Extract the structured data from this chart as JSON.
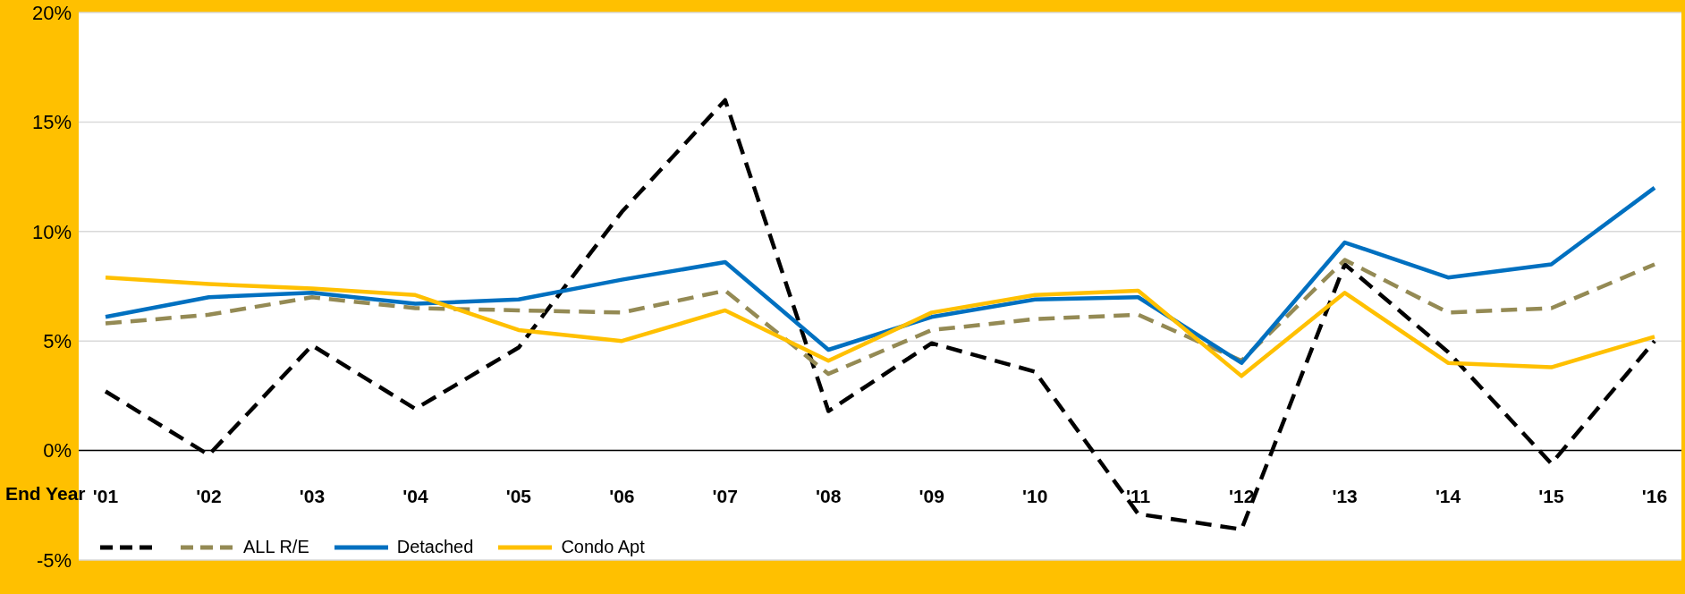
{
  "chart_data": {
    "type": "line",
    "xlabel": "End Year",
    "categories": [
      "'01",
      "'02",
      "'03",
      "'04",
      "'05",
      "'06",
      "'07",
      "'08",
      "'09",
      "'10",
      "'11",
      "'12",
      "'13",
      "'14",
      "'15",
      "'16"
    ],
    "series": [
      {
        "color": "#000000",
        "line_style": "dashed",
        "values": [
          2.7,
          -0.2,
          4.8,
          1.9,
          4.7,
          10.9,
          16.0,
          1.8,
          4.9,
          3.6,
          -2.9,
          -3.6,
          8.5,
          4.5,
          -0.6,
          5.0
        ]
      },
      {
        "name": "ALL R/E",
        "color": "#948a54",
        "line_style": "dashed",
        "values": [
          5.8,
          6.2,
          7.0,
          6.5,
          6.4,
          6.3,
          7.3,
          3.5,
          5.5,
          6.0,
          6.2,
          4.1,
          8.7,
          6.3,
          6.5,
          8.5
        ]
      },
      {
        "name": "Detached",
        "color": "#0070c0",
        "line_style": "solid",
        "values": [
          6.1,
          7.0,
          7.2,
          6.7,
          6.9,
          7.8,
          8.6,
          4.6,
          6.1,
          6.9,
          7.0,
          4.0,
          9.5,
          7.9,
          8.5,
          12.0
        ]
      },
      {
        "name": "Condo Apt",
        "color": "#ffc000",
        "line_style": "solid",
        "values": [
          7.9,
          7.6,
          7.4,
          7.1,
          5.5,
          5.0,
          6.4,
          4.1,
          6.3,
          7.1,
          7.3,
          3.4,
          7.2,
          4.0,
          3.8,
          5.2
        ]
      }
    ],
    "ylim": [
      -5,
      20
    ],
    "yticks": [
      {
        "value": -5,
        "label": "-5%"
      },
      {
        "value": 0,
        "label": "0%"
      },
      {
        "value": 5,
        "label": "5%"
      },
      {
        "value": 10,
        "label": "10%"
      },
      {
        "value": 15,
        "label": "15%"
      },
      {
        "value": 20,
        "label": "20%"
      }
    ],
    "grid": "y",
    "legend": "bottom left",
    "marker": "none"
  }
}
